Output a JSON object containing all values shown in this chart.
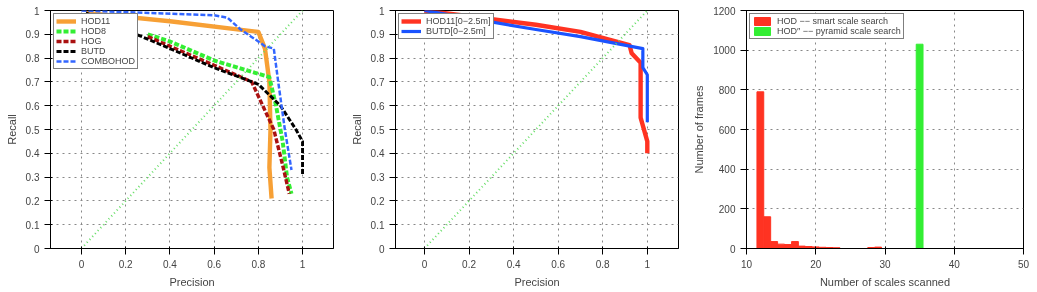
{
  "chart_data": [
    {
      "type": "line",
      "xlabel": "Precision",
      "ylabel": "Recall",
      "xlim": [
        -0.14,
        1.14
      ],
      "ylim": [
        0,
        1
      ],
      "xticks": [
        0,
        0.2,
        0.4,
        0.6,
        0.8,
        1
      ],
      "yticks": [
        0,
        0.1,
        0.2,
        0.3,
        0.4,
        0.5,
        0.6,
        0.7,
        0.8,
        0.9,
        1
      ],
      "grid": true,
      "legend": "top left",
      "series": [
        {
          "name": "HOD11",
          "color": "#f7a035",
          "line_style": "solid",
          "x": [
            0.02,
            0.4,
            0.8,
            0.83,
            0.85,
            0.855,
            0.85,
            0.86
          ],
          "values": [
            0.99,
            0.955,
            0.91,
            0.84,
            0.7,
            0.5,
            0.34,
            0.21
          ]
        },
        {
          "name": "HOD8",
          "color": "#33ee33",
          "line_style": "dashed",
          "x": [
            0.3,
            0.4,
            0.6,
            0.85,
            0.88,
            0.91,
            0.93,
            0.95
          ],
          "values": [
            0.9,
            0.87,
            0.79,
            0.72,
            0.6,
            0.45,
            0.3,
            0.23
          ]
        },
        {
          "name": "HOG",
          "color": "#aa1111",
          "line_style": "dashed",
          "x": [
            0.3,
            0.4,
            0.6,
            0.77,
            0.82,
            0.87,
            0.91,
            0.94
          ],
          "values": [
            0.89,
            0.85,
            0.77,
            0.7,
            0.6,
            0.5,
            0.35,
            0.23
          ]
        },
        {
          "name": "BUTD",
          "color": "#000000",
          "line_style": "dashed",
          "x": [
            0.02,
            0.4,
            0.6,
            0.8,
            0.9,
            0.97,
            1.0,
            1.0
          ],
          "values": [
            0.99,
            0.84,
            0.76,
            0.69,
            0.6,
            0.5,
            0.45,
            0.31
          ]
        },
        {
          "name": "COMBOHOD",
          "color": "#3366ff",
          "line_style": "dashed",
          "x": [
            0,
            0.6,
            0.66,
            0.72,
            0.8,
            0.83,
            0.87,
            0.89,
            0.92,
            0.95
          ],
          "values": [
            1,
            0.98,
            0.97,
            0.92,
            0.87,
            0.85,
            0.84,
            0.7,
            0.5,
            0.33
          ]
        },
        {
          "color": "#66dd66",
          "line_style": "dotted",
          "x": [
            0,
            1
          ],
          "values": [
            0,
            1
          ]
        }
      ]
    },
    {
      "type": "line",
      "xlabel": "Precision",
      "ylabel": "Recall",
      "xlim": [
        -0.13,
        1.14
      ],
      "ylim": [
        0,
        1
      ],
      "xticks": [
        0,
        0.2,
        0.4,
        0.6,
        0.8,
        1
      ],
      "yticks": [
        0,
        0.1,
        0.2,
        0.3,
        0.4,
        0.5,
        0.6,
        0.7,
        0.8,
        0.9,
        1
      ],
      "grid": true,
      "legend": "top left",
      "series": [
        {
          "name": "HOD11[0−2.5m]",
          "color": "#ff3322",
          "line_style": "solid",
          "x": [
            0,
            0.5,
            0.7,
            0.92,
            0.93,
            0.97,
            0.97,
            1.0,
            1.0
          ],
          "values": [
            1,
            0.94,
            0.91,
            0.855,
            0.82,
            0.78,
            0.55,
            0.45,
            0.4
          ]
        },
        {
          "name": "BUTD[0−2.5m]",
          "color": "#1a53ff",
          "line_style": "solid",
          "x": [
            0,
            0.5,
            0.7,
            0.98,
            0.98,
            1.0,
            1.0
          ],
          "values": [
            1,
            0.92,
            0.89,
            0.84,
            0.76,
            0.73,
            0.53
          ]
        },
        {
          "color": "#66dd66",
          "line_style": "dotted",
          "x": [
            0,
            1
          ],
          "values": [
            0,
            1
          ]
        }
      ]
    },
    {
      "type": "bar",
      "xlabel": "Number of scales scanned",
      "ylabel": "Number of frames",
      "xlim": [
        10,
        50
      ],
      "ylim": [
        0,
        1200
      ],
      "xticks": [
        10,
        20,
        30,
        40,
        50
      ],
      "yticks": [
        0,
        200,
        400,
        600,
        800,
        1000,
        1200
      ],
      "grid": true,
      "legend": "top left",
      "series": [
        {
          "name": "HOD −− smart scale search",
          "color": "#ff3322",
          "x": [
            12,
            13,
            14,
            15,
            16,
            17,
            18,
            19,
            20,
            21,
            22,
            23,
            28,
            29
          ],
          "values": [
            790,
            160,
            35,
            22,
            20,
            35,
            12,
            10,
            8,
            6,
            5,
            4,
            5,
            7
          ]
        },
        {
          "name": "HOD″ −− pyramid scale search",
          "color": "#33ee33",
          "x": [
            35
          ],
          "values": [
            1030
          ]
        }
      ]
    }
  ]
}
